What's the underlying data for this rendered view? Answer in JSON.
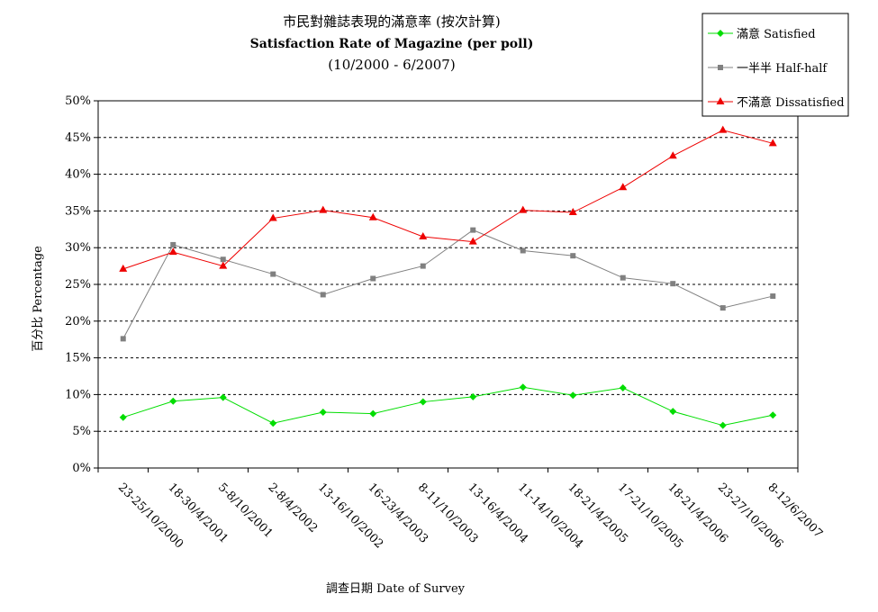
{
  "chart_data": {
    "type": "line",
    "title": "市民對雜誌表現的滿意率 (按次計算)",
    "subtitle": "Satisfaction Rate of Magazine (per poll)",
    "subtitle2": "(10/2000 - 6/2007)",
    "xlabel": "調查日期 Date of Survey",
    "ylabel": "百分比 Percentage",
    "ylim": [
      0,
      50
    ],
    "yticks": [
      "0%",
      "5%",
      "10%",
      "15%",
      "20%",
      "25%",
      "30%",
      "35%",
      "40%",
      "45%",
      "50%"
    ],
    "grid": "horizontal dashed",
    "legend_position": "top-right",
    "categories": [
      "23-25/10/2000",
      "18-30/4/2001",
      "5-8/10/2001",
      "2-8/4/2002",
      "13-16/10/2002",
      "16-23/4/2003",
      "8-11/10/2003",
      "13-16/4/2004",
      "11-14/10/2004",
      "18-21/4/2005",
      "17-21/10/2005",
      "18-21/4/2006",
      "23-27/10/2006",
      "8-12/6/2007"
    ],
    "series": [
      {
        "name": "滿意 Satisfied",
        "color": "#00dd00",
        "marker": "diamond",
        "values": [
          6.9,
          9.1,
          9.6,
          6.1,
          7.6,
          7.4,
          9.0,
          9.7,
          11.0,
          9.9,
          10.9,
          7.7,
          5.8,
          7.2
        ]
      },
      {
        "name": "一半半 Half-half",
        "color": "#808080",
        "marker": "square",
        "values": [
          17.6,
          30.4,
          28.4,
          26.4,
          23.6,
          25.8,
          27.5,
          32.4,
          29.6,
          28.9,
          25.9,
          25.1,
          21.8,
          23.4
        ]
      },
      {
        "name": "不滿意 Dissatisfied",
        "color": "#ee0000",
        "marker": "triangle",
        "values": [
          27.1,
          29.4,
          27.5,
          34.0,
          35.1,
          34.1,
          31.5,
          30.8,
          35.1,
          34.8,
          38.2,
          42.5,
          46.0,
          44.2
        ]
      }
    ]
  }
}
